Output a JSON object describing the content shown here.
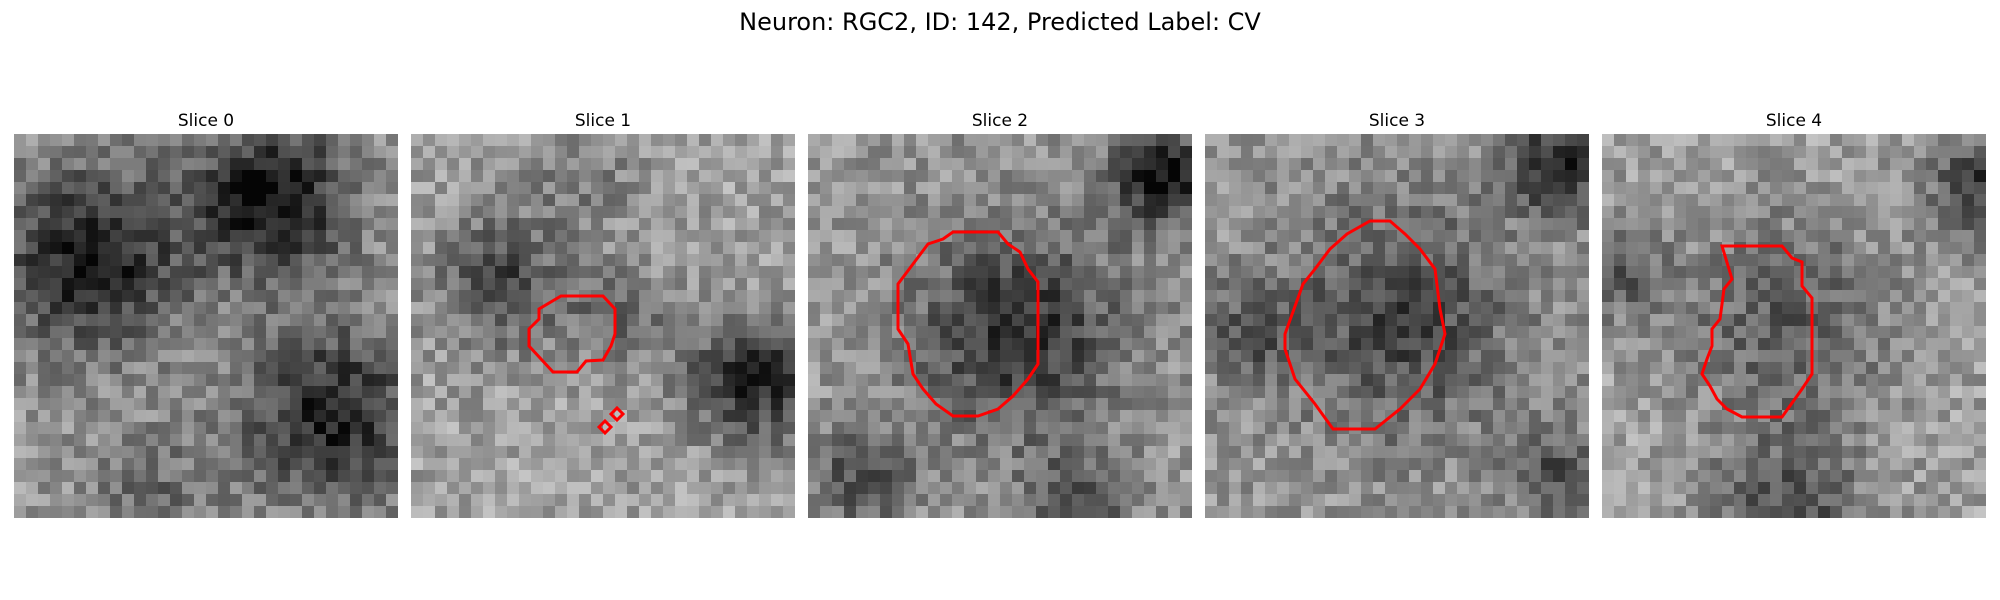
{
  "figure": {
    "title": "Neuron: RGC2, ID: 142, Predicted Label: CV"
  },
  "panels": [
    {
      "title": "Slice 0"
    },
    {
      "title": "Slice 1"
    },
    {
      "title": "Slice 2"
    },
    {
      "title": "Slice 3"
    },
    {
      "title": "Slice 4"
    }
  ],
  "colors": {
    "contour": "#ff0000",
    "colormap": "grayscale"
  }
}
